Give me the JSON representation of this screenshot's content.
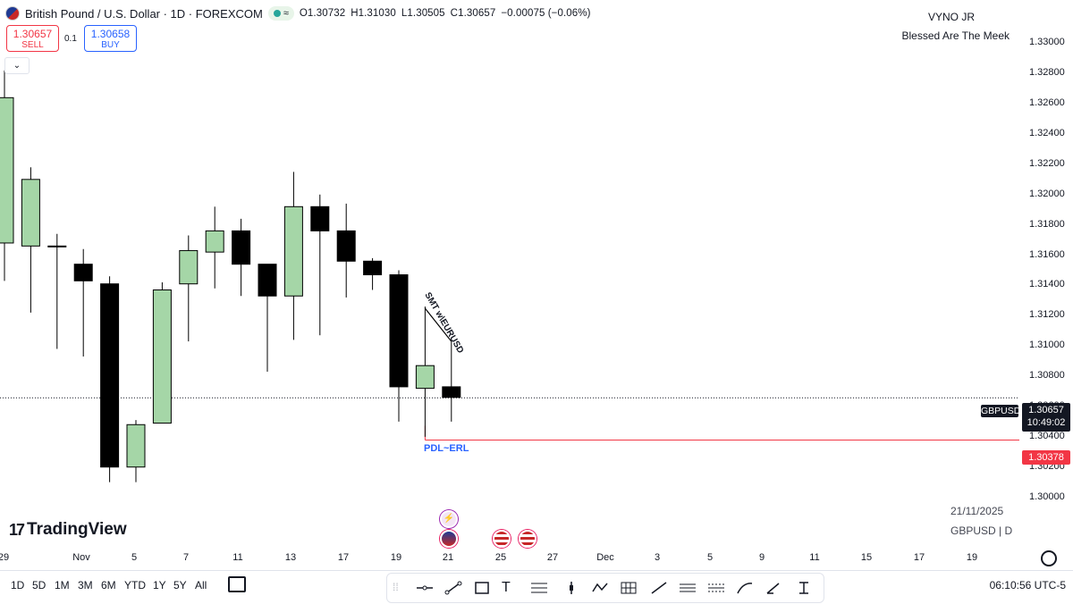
{
  "header": {
    "title": "British Pound / U.S. Dollar · 1D · FOREXCOM",
    "pill": "≈",
    "ohlc": {
      "o": "O1.30732",
      "h": "H1.31030",
      "l": "L1.30505",
      "c": "C1.30657",
      "chg": "−0.00075 (−0.06%)"
    },
    "sell_price": "1.30657",
    "sell_label": "SELL",
    "buy_price": "1.30658",
    "buy_label": "BUY",
    "qty": "0.1",
    "collapse_icon": "chevron-down-icon"
  },
  "signature": {
    "line1": "VYNO JR",
    "line2": "Blessed Are The Meek"
  },
  "price_axis": [
    "1.33000",
    "1.32800",
    "1.32600",
    "1.32400",
    "1.32200",
    "1.32000",
    "1.31800",
    "1.31600",
    "1.31400",
    "1.31200",
    "1.31000",
    "1.30800",
    "1.30600",
    "1.30400",
    "1.30200",
    "1.30000"
  ],
  "badges": {
    "symbol": "GBPUSD",
    "price": "1.30657",
    "countdown": "10:49:02",
    "level": "1.30378"
  },
  "watermark": {
    "date": "21/11/2025",
    "symbol": "GBPUSD | D",
    "logo": "TradingView"
  },
  "annotations": {
    "smt": "SMT w\\EURUSD",
    "pdl": "PDL~ERL"
  },
  "time_axis": [
    "29",
    "Nov",
    "5",
    "7",
    "11",
    "13",
    "17",
    "19",
    "21",
    "25",
    "27",
    "Dec",
    "3",
    "5",
    "9",
    "11",
    "15",
    "17",
    "19"
  ],
  "bottom": {
    "ranges": [
      "1D",
      "5D",
      "1M",
      "3M",
      "6M",
      "YTD",
      "1Y",
      "5Y",
      "All"
    ],
    "clock": "06:10:56 UTC-5"
  },
  "colors": {
    "up": "#a5d6a7",
    "down": "#000000",
    "level_line": "#f23645",
    "pdl_text": "#2962ff"
  },
  "chart_data": {
    "type": "candlestick",
    "symbol": "GBPUSD",
    "ylim": [
      1.2985,
      1.3312
    ],
    "candles": [
      {
        "o": 1.3168,
        "h": 1.3282,
        "l": 1.3143,
        "c": 1.3264
      },
      {
        "o": 1.3166,
        "h": 1.3218,
        "l": 1.3122,
        "c": 1.321
      },
      {
        "o": 1.3166,
        "h": 1.3174,
        "l": 1.3098,
        "c": 1.3166
      },
      {
        "o": 1.3154,
        "h": 1.3164,
        "l": 1.3093,
        "c": 1.3143
      },
      {
        "o": 1.3141,
        "h": 1.3146,
        "l": 1.301,
        "c": 1.302
      },
      {
        "o": 1.302,
        "h": 1.3051,
        "l": 1.301,
        "c": 1.3048
      },
      {
        "o": 1.3049,
        "h": 1.3142,
        "l": 1.305,
        "c": 1.3137
      },
      {
        "o": 1.3141,
        "h": 1.3173,
        "l": 1.3103,
        "c": 1.3163
      },
      {
        "o": 1.3162,
        "h": 1.3192,
        "l": 1.3138,
        "c": 1.3176
      },
      {
        "o": 1.3176,
        "h": 1.3184,
        "l": 1.3133,
        "c": 1.3154
      },
      {
        "o": 1.3154,
        "h": 1.3154,
        "l": 1.3083,
        "c": 1.3133
      },
      {
        "o": 1.3133,
        "h": 1.3215,
        "l": 1.3104,
        "c": 1.3192
      },
      {
        "o": 1.3192,
        "h": 1.32,
        "l": 1.3107,
        "c": 1.3176
      },
      {
        "o": 1.3176,
        "h": 1.3194,
        "l": 1.3132,
        "c": 1.3156
      },
      {
        "o": 1.3156,
        "h": 1.3158,
        "l": 1.3137,
        "c": 1.3147
      },
      {
        "o": 1.3147,
        "h": 1.315,
        "l": 1.305,
        "c": 1.3073
      },
      {
        "o": 1.3072,
        "h": 1.3126,
        "l": 1.304,
        "c": 1.3087
      },
      {
        "o": 1.3073,
        "h": 1.3103,
        "l": 1.305,
        "c": 1.3066
      }
    ],
    "current_price": 1.30657,
    "level": 1.30378
  }
}
